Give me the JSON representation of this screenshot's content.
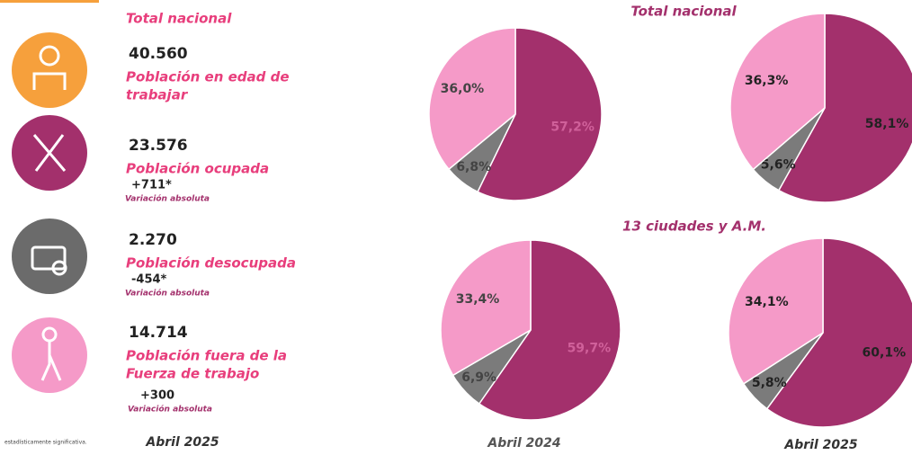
{
  "header": {
    "title": "Total nacional"
  },
  "stats": [
    {
      "value": "40.560",
      "label": [
        "Población en edad de",
        "trabajar"
      ]
    },
    {
      "value": "23.576",
      "label": [
        "Población ocupada"
      ],
      "change": "+711*",
      "change_label": "Variación absoluta"
    },
    {
      "value": "2.270",
      "label": [
        "Población desocupada"
      ],
      "change": "-454*",
      "change_label": "Variación absoluta"
    },
    {
      "value": "14.714",
      "label": [
        "Población fuera de la",
        "Fuerza de trabajo"
      ],
      "change": "+300",
      "change_label": "Variación absoluta"
    }
  ],
  "footer": {
    "note": "estadísticamente significativa.",
    "date": "Abril 2025"
  },
  "section_titles": [
    "Total nacional",
    "13 ciudades y A.M."
  ],
  "column_labels": [
    "Abril 2024",
    "Abril 2025"
  ],
  "chart_data": [
    {
      "type": "pie",
      "values": [
        57.2,
        6.8,
        36.0
      ],
      "value_labels": [
        "57,2%",
        "6,8%",
        "36,0%"
      ],
      "colors": [
        "#a3306c",
        "#7b7b7b",
        "#f59ac8"
      ]
    },
    {
      "type": "pie",
      "values": [
        58.1,
        5.6,
        36.3
      ],
      "value_labels": [
        "58,1%",
        "5,6%",
        "36,3%"
      ],
      "colors": [
        "#a3306c",
        "#7b7b7b",
        "#f59ac8"
      ]
    },
    {
      "type": "pie",
      "values": [
        59.7,
        6.9,
        33.4
      ],
      "value_labels": [
        "59,7%",
        "6,9%",
        "33,4%"
      ],
      "colors": [
        "#a3306c",
        "#7b7b7b",
        "#f59ac8"
      ]
    },
    {
      "type": "pie",
      "values": [
        60.1,
        5.8,
        34.1
      ],
      "value_labels": [
        "60,1%",
        "5,8%",
        "34,1%"
      ],
      "colors": [
        "#a3306c",
        "#7b7b7b",
        "#f59ac8"
      ]
    }
  ]
}
